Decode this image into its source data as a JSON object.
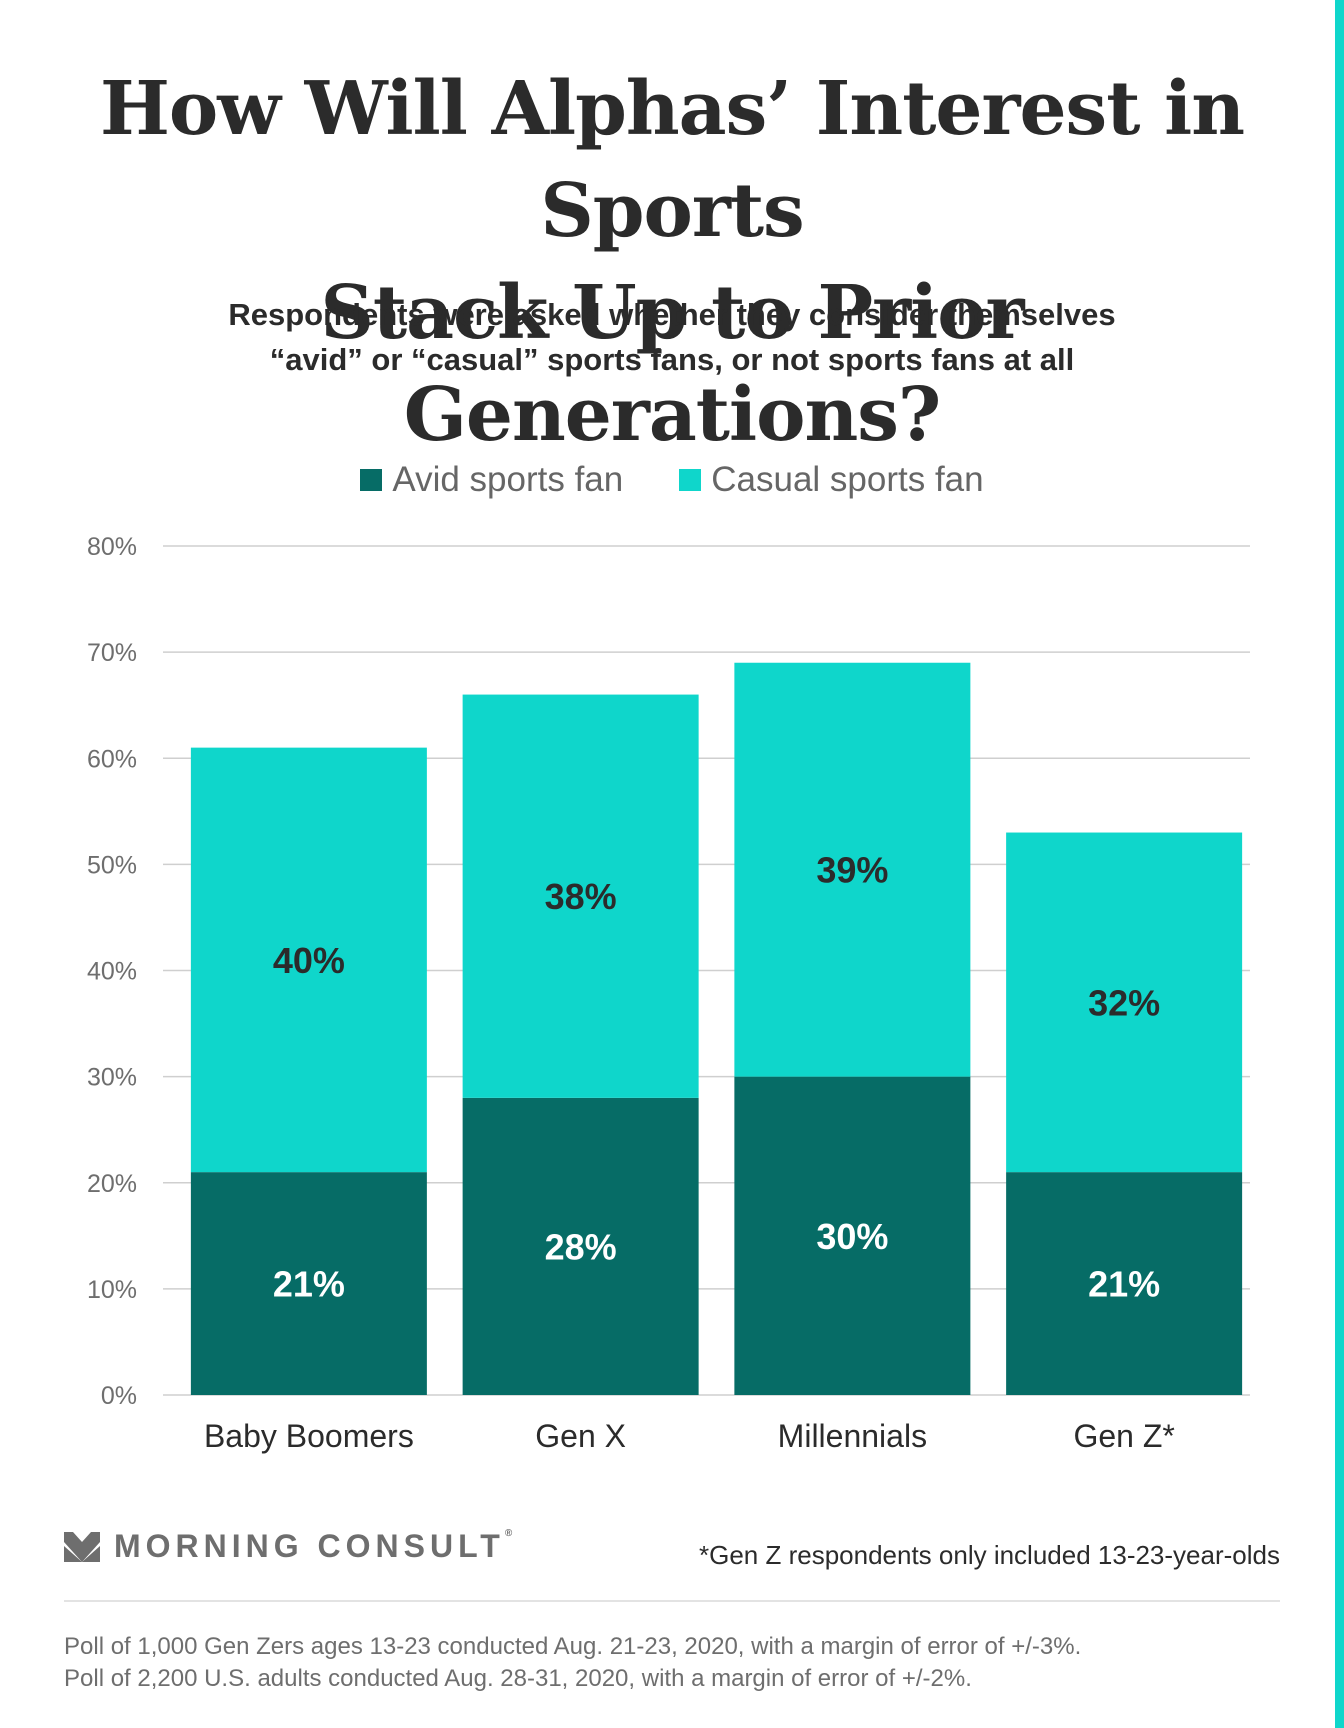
{
  "title_line1": "How Will Alphas’ Interest in Sports",
  "title_line2": "Stack Up to Prior Generations?",
  "subtitle_line1": "Respondents were asked whether they consider themselves",
  "subtitle_line2": "“avid” or “casual” sports fans, or not sports fans at all",
  "colors": {
    "avid": "#066c66",
    "casual": "#0fd6cb",
    "accent": "#0fd6cb",
    "grid": "#cfcfcf",
    "axis_text": "#6e6e6e"
  },
  "chart_data": {
    "type": "bar",
    "stacked": true,
    "categories": [
      "Baby Boomers",
      "Gen X",
      "Millennials",
      "Gen Z*"
    ],
    "series": [
      {
        "name": "Avid sports fan",
        "values": [
          21,
          28,
          30,
          21
        ],
        "labels": [
          "21%",
          "28%",
          "30%",
          "21%"
        ]
      },
      {
        "name": "Casual sports fan",
        "values": [
          40,
          38,
          39,
          32
        ],
        "labels": [
          "40%",
          "38%",
          "39%",
          "32%"
        ]
      }
    ],
    "ylim": [
      0,
      80
    ],
    "yticks": [
      0,
      10,
      20,
      30,
      40,
      50,
      60,
      70,
      80
    ],
    "ytick_labels": [
      "0%",
      "10%",
      "20%",
      "30%",
      "40%",
      "50%",
      "60%",
      "70%",
      "80%"
    ],
    "grid": true,
    "legend": "top-center"
  },
  "logo": {
    "name": "MORNING CONSULT",
    "mark": "®"
  },
  "footnote": "*Gen Z respondents only included 13-23-year-olds",
  "source_line1": "Poll of 1,000 Gen Zers ages 13-23 conducted Aug. 21-23, 2020, with a margin of error of +/-3%.",
  "source_line2": "Poll of 2,200 U.S. adults conducted Aug. 28-31, 2020, with a margin of error of +/-2%."
}
